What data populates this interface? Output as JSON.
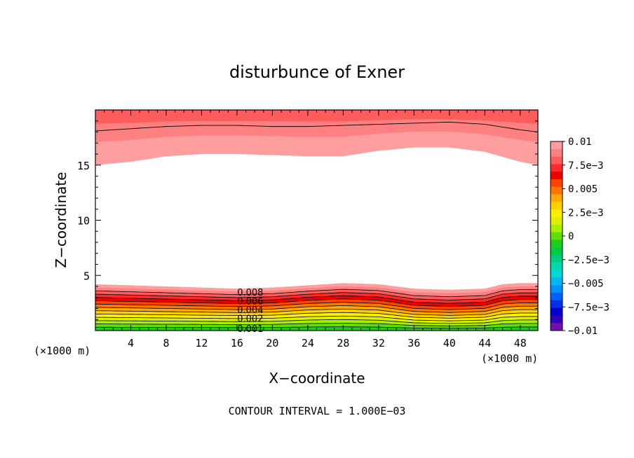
{
  "chart_data": {
    "type": "contour",
    "title": "disturbunce of Exner",
    "xlabel": "X−coordinate",
    "ylabel": "Z−coordinate",
    "x_unit_left": "(×1000 m)",
    "x_unit_right": "(×1000 m)",
    "footer": "CONTOUR INTERVAL = 1.000E−03",
    "xlim": [
      0,
      50
    ],
    "ylim": [
      0,
      20
    ],
    "x_ticks": [
      4,
      8,
      12,
      16,
      20,
      24,
      28,
      32,
      36,
      40,
      44,
      48
    ],
    "y_ticks": [
      5,
      10,
      15
    ],
    "colorbar": {
      "labels": [
        "0.01",
        "7.5e−3",
        "0.005",
        "2.5e−3",
        "0",
        "−2.5e−3",
        "−0.005",
        "−7.5e−3",
        "−0.01"
      ],
      "bins_top_to_bottom": [
        "#ff9e9e",
        "#ff8080",
        "#ff5c5c",
        "#ff2a2a",
        "#ee0000",
        "#ff4400",
        "#ff7700",
        "#ffaa00",
        "#ffd000",
        "#fff000",
        "#ddf000",
        "#a8f000",
        "#60e000",
        "#20cc20",
        "#00cc40",
        "#00cc80",
        "#00d8b0",
        "#00d8d8",
        "#00b8f0",
        "#0090ff",
        "#0060ff",
        "#0030ee",
        "#0000cc",
        "#3300bb",
        "#7010b0"
      ],
      "value_range": [
        -0.01,
        0.01
      ]
    },
    "bottom_layer": {
      "contour_labels": [
        "0.008",
        "0.006",
        "0.004",
        "0.002",
        "0.001"
      ],
      "profile_x": [
        0,
        4,
        8,
        12,
        16,
        20,
        24,
        28,
        32,
        36,
        40,
        44,
        46,
        48,
        50
      ],
      "top_z": [
        4.2,
        4.1,
        4.0,
        3.9,
        3.8,
        3.9,
        4.1,
        4.3,
        4.2,
        3.8,
        3.7,
        3.8,
        4.2,
        4.3,
        4.3
      ],
      "dip_z": [
        0,
        0,
        0,
        0,
        0,
        0,
        0.2,
        0.2,
        0.1,
        -0.3,
        -0.4,
        -0.3,
        0,
        0.1,
        0.1
      ]
    },
    "top_layer": {
      "profile_x": [
        0,
        4,
        8,
        12,
        16,
        20,
        24,
        28,
        32,
        36,
        40,
        44,
        48,
        50
      ],
      "bottom_z": [
        15.0,
        15.3,
        15.8,
        16.0,
        16.0,
        15.9,
        15.8,
        15.8,
        16.3,
        16.6,
        16.6,
        16.2,
        15.3,
        15.0
      ],
      "upper_contour_z": [
        18.1,
        18.3,
        18.5,
        18.6,
        18.6,
        18.5,
        18.5,
        18.6,
        18.7,
        18.8,
        18.9,
        18.7,
        18.2,
        18.0
      ]
    }
  }
}
